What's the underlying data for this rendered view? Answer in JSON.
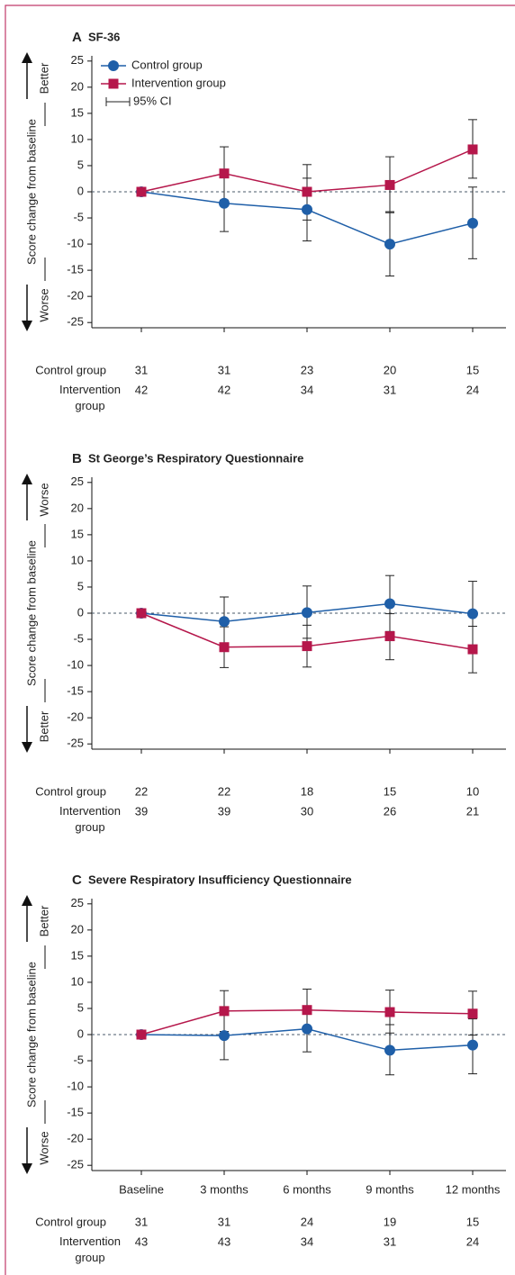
{
  "chart_data": [
    {
      "type": "line",
      "panel": "A",
      "title": "SF-36",
      "ylabel": "Score change from baseline",
      "direction_top": "Better",
      "direction_bottom": "Worse",
      "categories": [
        null,
        null,
        null,
        null,
        null
      ],
      "ylim": [
        -26,
        26
      ],
      "yticks": [
        -25,
        -20,
        -15,
        -10,
        -5,
        0,
        5,
        10,
        15,
        20,
        25
      ],
      "reference_line": 0,
      "legend": "upper left",
      "ci_label": "95% CI",
      "series": [
        {
          "name": "Control group",
          "color": "#1f5fa8",
          "marker": "circle",
          "values": [
            0,
            -2.2,
            -3.4,
            -10,
            -6
          ],
          "ci_low": [
            null,
            -7.6,
            -9.4,
            -16.1,
            -12.8
          ],
          "ci_high": [
            null,
            3.2,
            2.6,
            -3.8,
            0.9
          ]
        },
        {
          "name": "Intervention group",
          "color": "#b5174b",
          "marker": "square",
          "values": [
            0,
            3.5,
            0,
            1.3,
            8.1
          ],
          "ci_low": [
            null,
            -1.6,
            -5.4,
            -4,
            2.6
          ],
          "ci_high": [
            null,
            8.6,
            5.2,
            6.7,
            13.8
          ]
        }
      ],
      "n_table": [
        {
          "label": "Control group",
          "values": [
            31,
            31,
            23,
            20,
            15
          ]
        },
        {
          "label": "Intervention group",
          "values": [
            42,
            42,
            34,
            31,
            24
          ]
        }
      ]
    },
    {
      "type": "line",
      "panel": "B",
      "title": "St George’s Respiratory Questionnaire",
      "ylabel": "Score change from baseline",
      "direction_top": "Worse",
      "direction_bottom": "Better",
      "categories": [
        null,
        null,
        null,
        null,
        null
      ],
      "ylim": [
        -26,
        26
      ],
      "yticks": [
        -25,
        -20,
        -15,
        -10,
        -5,
        0,
        5,
        10,
        15,
        20,
        25
      ],
      "reference_line": 0,
      "series": [
        {
          "name": "Control group",
          "color": "#1f5fa8",
          "marker": "circle",
          "values": [
            0,
            -1.6,
            0.1,
            1.8,
            -0.1
          ],
          "ci_low": [
            null,
            -6.3,
            -4.8,
            -3.5,
            -6.4
          ],
          "ci_high": [
            null,
            3.1,
            5.2,
            7.2,
            6.1
          ]
        },
        {
          "name": "Intervention group",
          "color": "#b5174b",
          "marker": "square",
          "values": [
            0,
            -6.5,
            -6.3,
            -4.4,
            -6.9
          ],
          "ci_low": [
            null,
            -10.4,
            -10.3,
            -8.9,
            -11.4
          ],
          "ci_high": [
            null,
            -2.6,
            -2.3,
            -0.1,
            -2.5
          ]
        }
      ],
      "n_table": [
        {
          "label": "Control group",
          "values": [
            22,
            22,
            18,
            15,
            10
          ]
        },
        {
          "label": "Intervention group",
          "values": [
            39,
            39,
            30,
            26,
            21
          ]
        }
      ]
    },
    {
      "type": "line",
      "panel": "C",
      "title": "Severe Respiratory Insufficiency Questionnaire",
      "ylabel": "Score change from baseline",
      "direction_top": "Better",
      "direction_bottom": "Worse",
      "categories": [
        "Baseline",
        "3 months",
        "6 months",
        "9 months",
        "12 months"
      ],
      "ylim": [
        -26,
        26
      ],
      "yticks": [
        -25,
        -20,
        -15,
        -10,
        -5,
        0,
        5,
        10,
        15,
        20,
        25
      ],
      "reference_line": 0,
      "series": [
        {
          "name": "Control group",
          "color": "#1f5fa8",
          "marker": "circle",
          "values": [
            0,
            -0.2,
            1.1,
            -3,
            -2
          ],
          "ci_low": [
            null,
            -4.8,
            -3.3,
            -7.7,
            -7.5
          ],
          "ci_high": [
            null,
            3.9,
            4.9,
            1.9,
            3
          ]
        },
        {
          "name": "Intervention group",
          "color": "#b5174b",
          "marker": "square",
          "values": [
            0,
            4.5,
            4.7,
            4.3,
            4
          ],
          "ci_low": [
            null,
            0.6,
            0.7,
            0.3,
            -0.1
          ],
          "ci_high": [
            null,
            8.4,
            8.7,
            8.5,
            8.3
          ]
        }
      ],
      "n_table": [
        {
          "label": "Control group",
          "values": [
            31,
            31,
            24,
            19,
            15
          ]
        },
        {
          "label": "Intervention group",
          "values": [
            43,
            43,
            34,
            31,
            24
          ]
        }
      ]
    }
  ]
}
